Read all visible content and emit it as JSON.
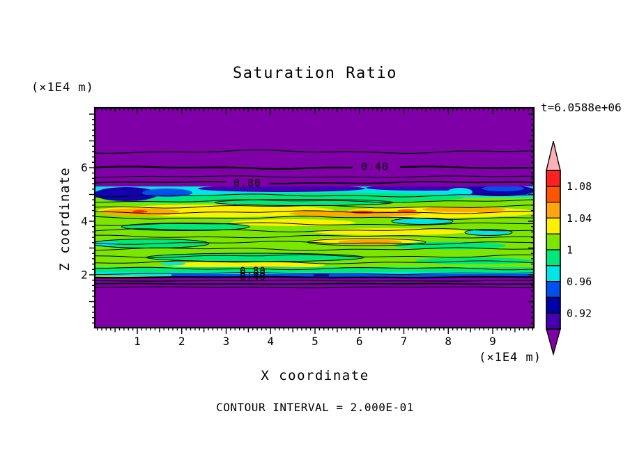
{
  "chart_data": {
    "type": "filled-contour",
    "title": "Saturation Ratio",
    "xlabel": "X coordinate",
    "ylabel": "Z coordinate",
    "x_unit_label": "(×1E4 m)",
    "y_unit_label": "(×1E4 m)",
    "time_label": "t=6.0588e+06",
    "contour_interval": 0.2,
    "contour_interval_label": "CONTOUR INTERVAL = 2.000E-01",
    "xlim": [
      0,
      10
    ],
    "ylim": [
      0,
      8.25
    ],
    "x_ticks": [
      1,
      2,
      3,
      4,
      5,
      6,
      7,
      8,
      9
    ],
    "x_minor_step": 0.1,
    "y_ticks": [
      2,
      4,
      6
    ],
    "y_minor_step": 0.2,
    "contour_labels": {
      "upper_040": "0.40",
      "upper_080": "0.80",
      "lower_080": "0.80",
      "lower_060": "0.60",
      "lower_040": "0.40"
    },
    "colorbar": {
      "tick_labels": [
        "1.08",
        "1.04",
        "1",
        "0.96",
        "0.92"
      ],
      "levels": [
        0.9,
        0.92,
        0.94,
        0.96,
        0.98,
        1.0,
        1.02,
        1.04,
        1.06,
        1.08,
        1.1
      ],
      "segment_colors_top_to_bottom": [
        "#FF2121",
        "#FF5500",
        "#FFA510",
        "#FFF000",
        "#7CE600",
        "#00E87A",
        "#00E5E5",
        "#0050EE",
        "#0000A8",
        "#4400B0"
      ],
      "over_color": "#FFB0B6",
      "under_color": "#8000A8"
    },
    "field_bands": [
      {
        "z_range": [
          8.25,
          5.6
        ],
        "description": "uniform low saturation ratio < 0.9 (purple); horizontal contour lines labeled 0.40 and 0.80"
      },
      {
        "z_range": [
          5.6,
          5.2
        ],
        "description": "thin transition 0.90-0.96: dark blue / blue patches strongest at left and right edges with cyan fringe"
      },
      {
        "z_range": [
          5.2,
          2.1
        ],
        "description": "heterogeneous streaky layer ~0.96-1.10: yellow-green matrix with horizontal green, yellow, orange and small red lenses"
      },
      {
        "z_range": [
          2.1,
          1.75
        ],
        "description": "sharp drop through 0.80, 0.60, 0.40 contours (closely spaced, overlapping labels)"
      },
      {
        "z_range": [
          1.75,
          0
        ],
        "description": "uniform low saturation ratio < 0.9 (purple)"
      }
    ]
  },
  "colors": {
    "background": "#FFFFFF",
    "axis": "#000000",
    "contour_line": "#000000"
  }
}
